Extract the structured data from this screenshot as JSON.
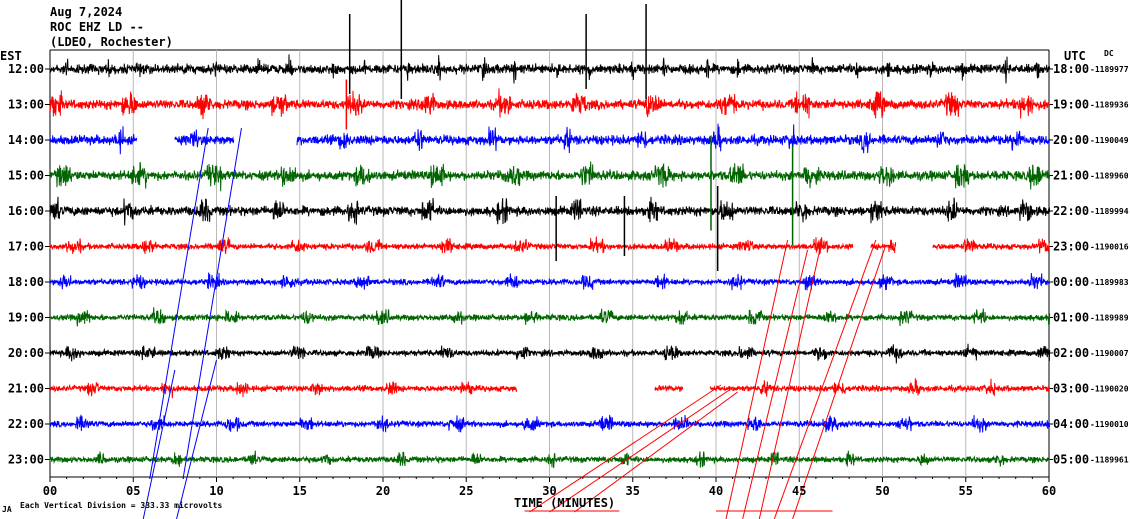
{
  "header": {
    "date": "Aug 7,2024",
    "station": "ROC EHZ LD --",
    "network": "(LDEO, Rochester)"
  },
  "axes": {
    "left_tz": "EST",
    "right_tz": "UTC",
    "dc_label": "DC",
    "x_title": "TIME (MINUTES)"
  },
  "footer": {
    "scale_note": "Each Vertical Division = 333.33 microvolts",
    "mark": "JA"
  },
  "chart_data": {
    "type": "line",
    "xlabel": "TIME (MINUTES)",
    "x_ticks": [
      "00",
      "05",
      "10",
      "15",
      "20",
      "25",
      "30",
      "35",
      "40",
      "45",
      "50",
      "55",
      "60"
    ],
    "xlim": [
      0,
      60
    ],
    "grid": true,
    "colors": [
      "#000000",
      "#ff0000",
      "#0000ff",
      "#006400"
    ],
    "rows": [
      {
        "est": "12:00",
        "utc": "18:00",
        "dc": "-1189977"
      },
      {
        "est": "13:00",
        "utc": "19:00",
        "dc": "-1189936"
      },
      {
        "est": "14:00",
        "utc": "20:00",
        "dc": "-1190049"
      },
      {
        "est": "15:00",
        "utc": "21:00",
        "dc": "-1189960"
      },
      {
        "est": "16:00",
        "utc": "22:00",
        "dc": "-1189994"
      },
      {
        "est": "17:00",
        "utc": "23:00",
        "dc": "-1190016"
      },
      {
        "est": "18:00",
        "utc": "00:00",
        "dc": "-1189983"
      },
      {
        "est": "19:00",
        "utc": "01:00",
        "dc": "-1189989"
      },
      {
        "est": "20:00",
        "utc": "02:00",
        "dc": "-1190007"
      },
      {
        "est": "21:00",
        "utc": "03:00",
        "dc": "-1190020"
      },
      {
        "est": "22:00",
        "utc": "04:00",
        "dc": "-1190010"
      },
      {
        "est": "23:00",
        "utc": "05:00",
        "dc": "-1189961"
      }
    ]
  }
}
